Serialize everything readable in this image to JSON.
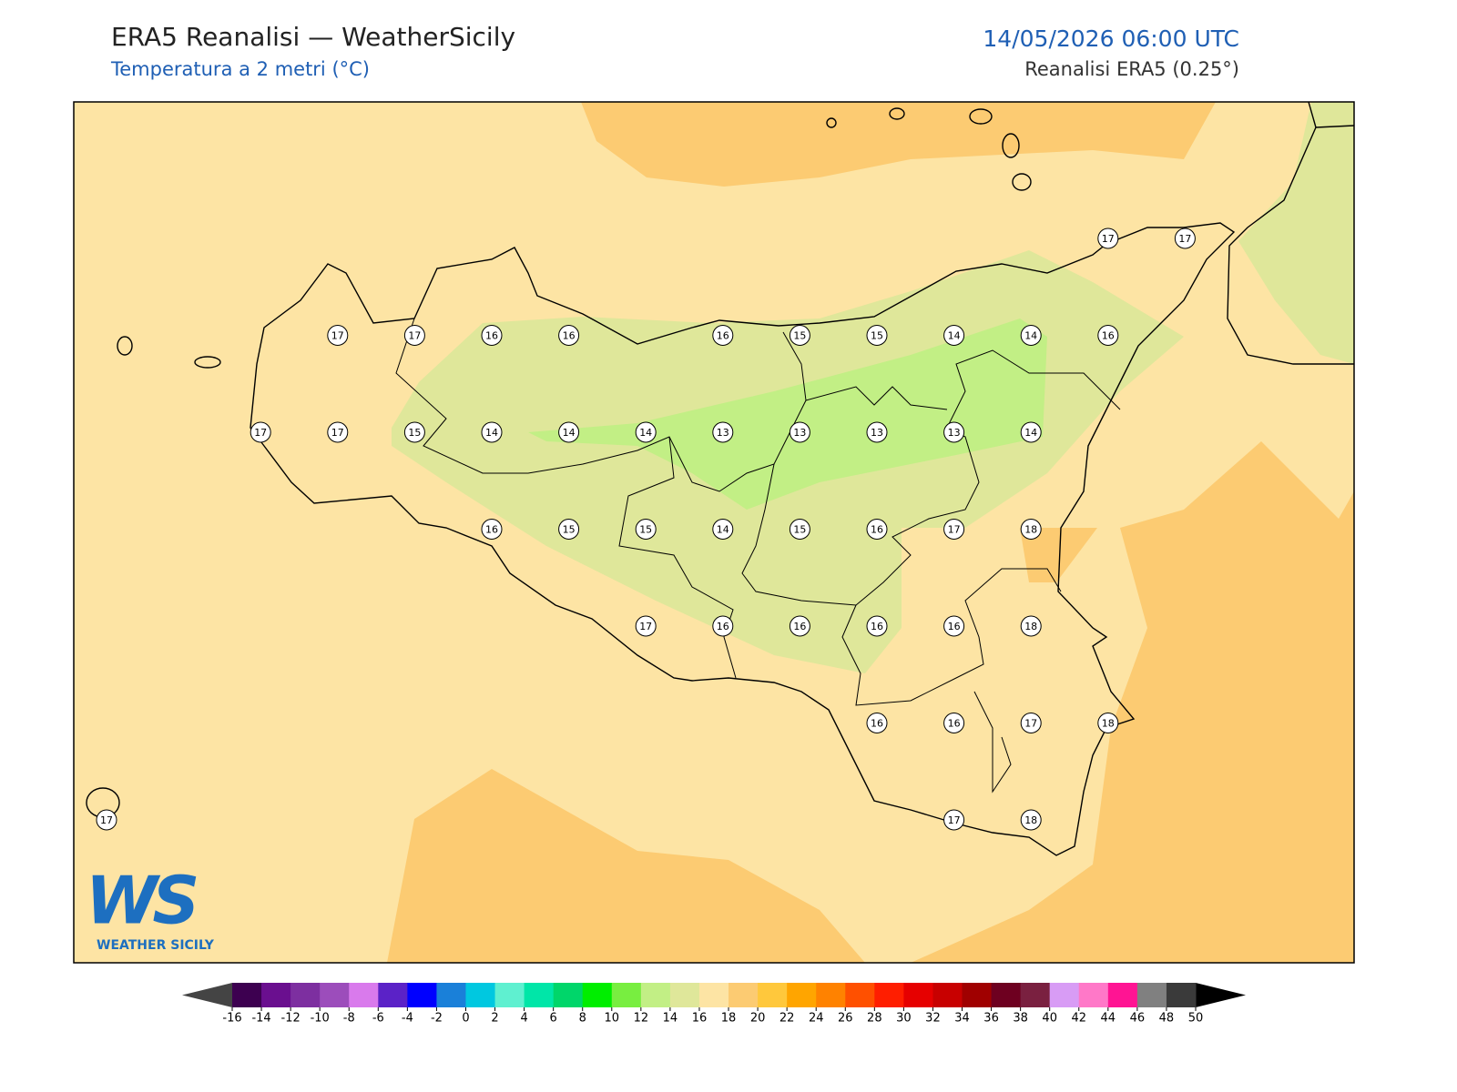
{
  "header": {
    "title": "ERA5 Reanalisi — WeatherSicily",
    "subtitle": "Temperatura a 2 metri (°C)",
    "datetime": "14/05/2026 06:00 UTC",
    "source": "Reanalisi ERA5 (0.25°)"
  },
  "stations": {
    "rows": [
      [
        null,
        null,
        null,
        null,
        null,
        null,
        null,
        null,
        null,
        null,
        null,
        null,
        null,
        17,
        17
      ],
      [
        null,
        null,
        null,
        17,
        17,
        16,
        16,
        null,
        16,
        15,
        15,
        14,
        14,
        16,
        null
      ],
      [
        null,
        null,
        17,
        17,
        15,
        14,
        14,
        14,
        13,
        13,
        13,
        13,
        14,
        null,
        null
      ],
      [
        null,
        null,
        null,
        null,
        null,
        16,
        15,
        15,
        14,
        15,
        16,
        17,
        18,
        null,
        null
      ],
      [
        null,
        null,
        null,
        null,
        null,
        null,
        null,
        17,
        16,
        16,
        16,
        16,
        18,
        null,
        null
      ],
      [
        null,
        null,
        null,
        null,
        null,
        null,
        null,
        null,
        null,
        null,
        16,
        16,
        17,
        18,
        null
      ],
      [
        17,
        null,
        null,
        null,
        null,
        null,
        null,
        null,
        null,
        null,
        null,
        17,
        18,
        null,
        null
      ]
    ]
  },
  "colorbar": {
    "ticks": [
      -16,
      -14,
      -12,
      -10,
      -8,
      -6,
      -4,
      -2,
      0,
      2,
      4,
      6,
      8,
      10,
      12,
      14,
      16,
      18,
      20,
      22,
      24,
      26,
      28,
      30,
      32,
      34,
      36,
      38,
      40,
      42,
      44,
      46,
      48,
      50
    ],
    "colors": [
      "#3d0050",
      "#6a0f8f",
      "#7d2fa0",
      "#9c4dbb",
      "#d97aec",
      "#5b22c7",
      "#0000ff",
      "#1a80d9",
      "#00c8e0",
      "#5ff0d0",
      "#00e6a8",
      "#00d66a",
      "#00ee00",
      "#78ee40",
      "#c2ef85",
      "#dfe79a",
      "#fde4a4",
      "#fccb72",
      "#ffc83c",
      "#ffa500",
      "#ff8200",
      "#ff5000",
      "#ff1e00",
      "#e60000",
      "#c80000",
      "#a00000",
      "#6e0020",
      "#7a2040",
      "#d89cf5",
      "#ff78c8",
      "#ff1493",
      "#808080",
      "#3a3a3a"
    ],
    "under_color": "#444444",
    "over_color": "#000000"
  },
  "logo": {
    "mark": "WS",
    "text": "WEATHER SICILY"
  }
}
